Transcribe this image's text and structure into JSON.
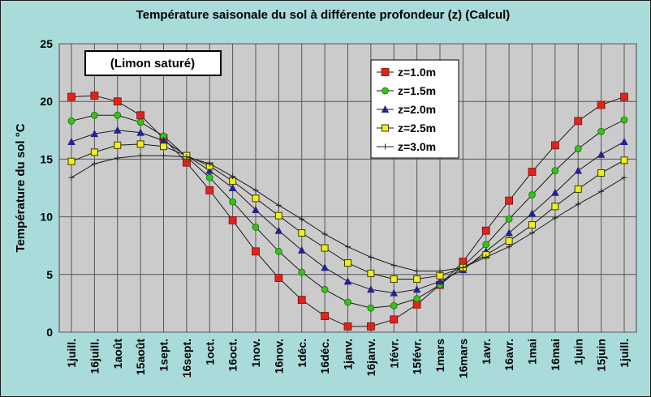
{
  "chart_data": {
    "type": "line",
    "title": "Température saisonale du sol à différente profondeur (z)  (Calcul)",
    "ylabel": "Température du sol °C",
    "xlabel": "",
    "ylim": [
      0,
      25
    ],
    "yticks": [
      0,
      5,
      10,
      15,
      20,
      25
    ],
    "grid": true,
    "legend_position": "top-center",
    "annotation": "(Limon saturé)",
    "categories": [
      "1juill.",
      "16juill.",
      "1août",
      "15août",
      "1sept.",
      "16sept.",
      "1oct.",
      "16oct.",
      "1nov.",
      "16nov.",
      "1déc.",
      "16déc.",
      "1janv.",
      "16janv.",
      "1févr.",
      "15févr.",
      "1mars",
      "16mars",
      "1avr.",
      "16avr.",
      "1mai",
      "16mai",
      "1juin",
      "15juin",
      "1juill."
    ],
    "series": [
      {
        "name": "z=1.0m",
        "color": "#e0241b",
        "marker": "square-filled",
        "values": [
          20.4,
          20.5,
          20.0,
          18.8,
          16.8,
          14.7,
          12.3,
          9.7,
          7.0,
          4.7,
          2.8,
          1.4,
          0.5,
          0.5,
          1.1,
          2.4,
          4.1,
          6.1,
          8.8,
          11.4,
          13.9,
          16.2,
          18.3,
          19.7,
          20.4
        ]
      },
      {
        "name": "z=1.5m",
        "color": "#35c317",
        "marker": "circle",
        "values": [
          18.3,
          18.8,
          18.8,
          18.2,
          17.0,
          15.2,
          13.4,
          11.3,
          9.1,
          7.0,
          5.2,
          3.7,
          2.6,
          2.1,
          2.3,
          2.9,
          4.1,
          5.7,
          7.6,
          9.8,
          11.9,
          14.0,
          15.9,
          17.4,
          18.4
        ]
      },
      {
        "name": "z=2.0m",
        "color": "#23238f",
        "marker": "triangle",
        "values": [
          16.5,
          17.2,
          17.5,
          17.3,
          16.6,
          15.3,
          14.0,
          12.5,
          10.6,
          8.8,
          7.1,
          5.6,
          4.4,
          3.7,
          3.4,
          3.7,
          4.4,
          5.4,
          7.0,
          8.6,
          10.3,
          12.1,
          14.0,
          15.4,
          16.5
        ]
      },
      {
        "name": "z=2.5m",
        "color": "#f2ef18",
        "marker": "square-open",
        "values": [
          14.8,
          15.6,
          16.2,
          16.3,
          16.1,
          15.3,
          14.4,
          13.1,
          11.6,
          10.1,
          8.6,
          7.3,
          6.0,
          5.1,
          4.6,
          4.6,
          4.9,
          5.6,
          6.7,
          7.9,
          9.3,
          10.9,
          12.4,
          13.8,
          14.9
        ]
      },
      {
        "name": "z=3.0m",
        "color": "#222222",
        "marker": "plus",
        "values": [
          13.4,
          14.6,
          15.1,
          15.3,
          15.3,
          15.2,
          14.6,
          13.5,
          12.3,
          11.0,
          9.8,
          8.5,
          7.4,
          6.5,
          5.8,
          5.3,
          5.3,
          5.6,
          6.5,
          7.4,
          8.6,
          9.9,
          11.1,
          12.2,
          13.4
        ]
      }
    ]
  }
}
